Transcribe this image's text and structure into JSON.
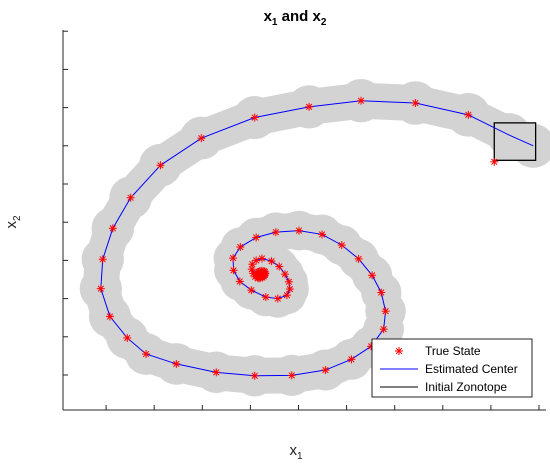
{
  "chart_data": {
    "type": "scatter",
    "title": {
      "main": "x",
      "s1": "1",
      "mid": " and x",
      "s2": "2"
    },
    "xlabel": {
      "main": "x",
      "sub": "1"
    },
    "ylabel": {
      "main": "x",
      "sub": "2"
    },
    "xlim": [
      0,
      10
    ],
    "ylim": [
      0,
      10
    ],
    "tick_labels_shown": false,
    "x_tick_count": 11,
    "y_tick_count": 10,
    "legend": {
      "placement": "bottom-right",
      "entries": [
        "True State",
        "Estimated Center",
        "Initial Zonotope"
      ]
    },
    "colors": {
      "true_state": "#ff0000",
      "estimated_center": "#0000ff",
      "initial_zonotope": "#000000",
      "zonotope_fill": "#d3d3d3"
    },
    "initial_zonotope": {
      "x": [
        9.07,
        9.93
      ],
      "y": [
        5.62,
        6.6
      ]
    },
    "series": [
      {
        "name": "Estimated Center",
        "kind": "line",
        "x": [
          9.88,
          9.38,
          8.53,
          7.43,
          6.3,
          5.22,
          4.09,
          2.98,
          2.13,
          1.51,
          1.14,
          0.93,
          0.89,
          1.08,
          1.44,
          1.83,
          2.46,
          3.29,
          4.09,
          4.86,
          5.56,
          6.1,
          6.51,
          6.77,
          6.81,
          6.72,
          6.53,
          6.25,
          5.9,
          5.49,
          5.01,
          4.53,
          4.12,
          3.79,
          3.64,
          3.65,
          3.78,
          4.02,
          4.32,
          4.57,
          4.76,
          4.82,
          4.8,
          4.72,
          4.6,
          4.44,
          4.24,
          4.12,
          4.04,
          4.03,
          4.06,
          4.1,
          4.16,
          4.2,
          4.25,
          4.28
        ],
        "y": [
          6.0,
          6.28,
          6.81,
          7.12,
          7.18,
          7.02,
          6.74,
          6.2,
          5.49,
          4.64,
          3.84,
          3.03,
          2.26,
          1.53,
          0.97,
          0.55,
          0.29,
          0.07,
          -0.02,
          -0.01,
          0.13,
          0.41,
          0.75,
          1.2,
          1.67,
          2.16,
          2.61,
          3.04,
          3.4,
          3.68,
          3.78,
          3.74,
          3.6,
          3.35,
          3.06,
          2.74,
          2.45,
          2.22,
          2.04,
          2.0,
          2.09,
          2.25,
          2.44,
          2.64,
          2.84,
          2.98,
          3.05,
          3.0,
          2.9,
          2.77,
          2.66,
          2.57,
          2.53,
          2.53,
          2.55,
          2.58
        ]
      },
      {
        "name": "True State",
        "kind": "markers",
        "marker": "*",
        "x": [
          9.07,
          8.53,
          7.43,
          6.3,
          5.22,
          4.09,
          2.98,
          2.13,
          1.51,
          1.14,
          0.93,
          0.89,
          1.08,
          1.44,
          1.83,
          2.46,
          3.29,
          4.09,
          4.86,
          5.56,
          6.1,
          6.51,
          6.77,
          6.81,
          6.72,
          6.53,
          6.25,
          5.9,
          5.49,
          5.01,
          4.53,
          4.12,
          3.79,
          3.64,
          3.65,
          3.78,
          4.02,
          4.32,
          4.57,
          4.76,
          4.82,
          4.8,
          4.72,
          4.6,
          4.44,
          4.24,
          4.12,
          4.04,
          4.03,
          4.06,
          4.1,
          4.16,
          4.2,
          4.25,
          4.28,
          4.3,
          4.31,
          4.3,
          4.28,
          4.24,
          4.2,
          4.17,
          4.14,
          4.13,
          4.13,
          4.15,
          4.18,
          4.21,
          4.24,
          4.26,
          4.27,
          4.27,
          4.26,
          4.24,
          4.22
        ],
        "y": [
          5.58,
          6.81,
          7.12,
          7.18,
          7.02,
          6.74,
          6.2,
          5.49,
          4.64,
          3.84,
          3.03,
          2.26,
          1.53,
          0.97,
          0.55,
          0.29,
          0.07,
          -0.02,
          -0.01,
          0.13,
          0.41,
          0.75,
          1.2,
          1.67,
          2.16,
          2.61,
          3.04,
          3.4,
          3.68,
          3.78,
          3.74,
          3.6,
          3.35,
          3.06,
          2.74,
          2.45,
          2.22,
          2.04,
          2.0,
          2.09,
          2.25,
          2.44,
          2.64,
          2.84,
          2.98,
          3.05,
          3.0,
          2.9,
          2.77,
          2.66,
          2.57,
          2.53,
          2.53,
          2.55,
          2.58,
          2.62,
          2.66,
          2.7,
          2.72,
          2.73,
          2.72,
          2.7,
          2.67,
          2.64,
          2.61,
          2.58,
          2.57,
          2.57,
          2.58,
          2.6,
          2.62,
          2.64,
          2.65,
          2.66,
          2.65
        ]
      }
    ]
  }
}
